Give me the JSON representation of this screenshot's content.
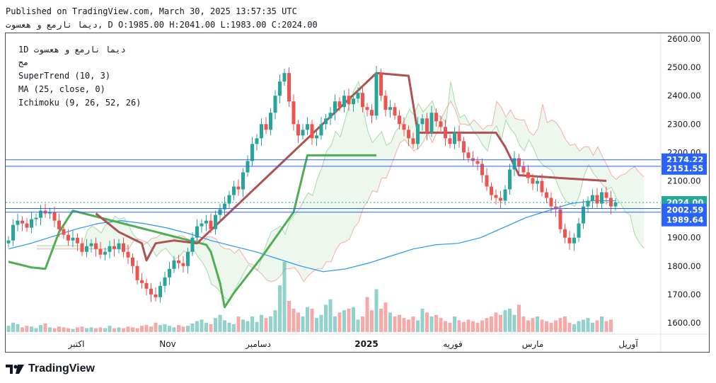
{
  "header": {
    "published": "Published on TradingView.com, March 30, 2025 13:57:35 UTC",
    "ohlc_line": "ديما نارمع و هعسوت, D O:1985.00 H:2041.00 L:1983.00 C:2024.00"
  },
  "legend": {
    "symbol": "1D  ديما نارمع و هعسوت",
    "sub": "مج",
    "supertrend": "SuperTrend (10, 3)",
    "ma": "MA (25, close, 0)",
    "ichimoku": "Ichimoku (9, 26, 52, 26)"
  },
  "brand": {
    "name": "TradingView"
  },
  "colors": {
    "up": "#26a69a",
    "down": "#ef5350",
    "supertrend_up": "#4caf50",
    "supertrend_down": "#b05050",
    "ma": "#2196f3",
    "price_line": "#2962ff"
  },
  "chart_data": {
    "type": "candlestick",
    "title": "ديما نارمع و هعسوت, 1D",
    "ylim": [
      1560,
      2620
    ],
    "y_ticks": [
      "2600.00",
      "2500.00",
      "2400.00",
      "2300.00",
      "2200.00",
      "2100.00",
      "2000.00",
      "1900.00",
      "1800.00",
      "1700.00",
      "1600.00"
    ],
    "x_ticks": [
      "اكتبر",
      "Nov",
      "دسامبر",
      "2025",
      "فوريه",
      "مارس",
      "آوريل"
    ],
    "price_labels": [
      {
        "text": "2174.22",
        "value": 2174.22
      },
      {
        "text": "2151.55",
        "value": 2151.55
      },
      {
        "text": "2024.00",
        "value": 2024.0
      },
      {
        "text": "2002.59",
        "value": 2002.59
      },
      {
        "text": "1989.64",
        "value": 1989.64
      }
    ],
    "last": {
      "open": 1985.0,
      "high": 2041.0,
      "low": 1983.0,
      "close": 2024.0
    },
    "closes": [
      1890,
      1945,
      1960,
      1950,
      1935,
      1965,
      1970,
      1995,
      1985,
      1990,
      1960,
      1930,
      1910,
      1890,
      1900,
      1880,
      1850,
      1870,
      1880,
      1860,
      1840,
      1850,
      1870,
      1860,
      1880,
      1850,
      1830,
      1800,
      1750,
      1740,
      1720,
      1700,
      1690,
      1730,
      1760,
      1790,
      1820,
      1810,
      1800,
      1850,
      1900,
      1940,
      1950,
      1960,
      1930,
      1980,
      2000,
      2020,
      2050,
      2080,
      2070,
      2130,
      2170,
      2230,
      2250,
      2300,
      2280,
      2340,
      2400,
      2450,
      2480,
      2380,
      2300,
      2260,
      2280,
      2300,
      2250,
      2260,
      2300,
      2320,
      2340,
      2380,
      2360,
      2400,
      2370,
      2390,
      2410,
      2360,
      2350,
      2330,
      2480,
      2400,
      2350,
      2360,
      2330,
      2300,
      2280,
      2250,
      2230,
      2300,
      2320,
      2270,
      2340,
      2310,
      2290,
      2250,
      2230,
      2270,
      2240,
      2200,
      2180,
      2170,
      2160,
      2120,
      2080,
      2050,
      2040,
      2030,
      2070,
      2140,
      2180,
      2150,
      2130,
      2110,
      2090,
      2100,
      2060,
      2040,
      2010,
      2000,
      1930,
      1900,
      1880,
      1900,
      1950,
      2010,
      2030,
      2050,
      2020,
      2060,
      2040,
      2010,
      2024
    ],
    "ma": [
      1860,
      1880,
      1905,
      1930,
      1950,
      1960,
      1950,
      1935,
      1915,
      1890,
      1870,
      1850,
      1825,
      1800,
      1780,
      1790,
      1810,
      1835,
      1860,
      1875,
      1880,
      1900,
      1935,
      1970,
      1995,
      2020,
      2030,
      2030
    ],
    "supertrend_up": [
      [
        0,
        1815
      ],
      [
        5,
        1795
      ],
      [
        8,
        1790
      ],
      [
        11,
        1920
      ],
      [
        14,
        1995
      ],
      [
        43,
        1875
      ],
      [
        44,
        1850
      ],
      [
        46,
        1740
      ],
      [
        47,
        1655
      ],
      [
        49,
        1705
      ],
      [
        55,
        1830
      ],
      [
        62,
        1990
      ],
      [
        65,
        2190
      ],
      [
        80,
        2190
      ]
    ],
    "supertrend_down": [
      [
        19,
        1985
      ],
      [
        24,
        1920
      ],
      [
        29,
        1880
      ],
      [
        30,
        1820
      ],
      [
        32,
        1880
      ],
      [
        36,
        1890
      ],
      [
        41,
        1880
      ],
      [
        80,
        2480
      ],
      [
        87,
        2470
      ],
      [
        89,
        2270
      ],
      [
        106,
        2270
      ],
      [
        108,
        2220
      ],
      [
        111,
        2120
      ],
      [
        120,
        2110
      ],
      [
        130,
        2100
      ]
    ],
    "volume": [
      0.08,
      0.12,
      0.1,
      0.06,
      0.08,
      0.07,
      0.05,
      0.09,
      0.11,
      0.06,
      0.05,
      0.07,
      0.06,
      0.05,
      0.04,
      0.06,
      0.07,
      0.05,
      0.06,
      0.05,
      0.06,
      0.05,
      0.08,
      0.05,
      0.06,
      0.05,
      0.07,
      0.06,
      0.05,
      0.08,
      0.09,
      0.07,
      0.12,
      0.09,
      0.1,
      0.08,
      0.06,
      0.09,
      0.07,
      0.08,
      0.11,
      0.14,
      0.16,
      0.12,
      0.1,
      0.18,
      0.22,
      0.15,
      0.12,
      0.1,
      0.2,
      0.16,
      0.14,
      0.2,
      0.13,
      0.22,
      0.18,
      0.2,
      0.28,
      0.6,
      0.9,
      0.4,
      0.3,
      0.25,
      0.2,
      0.32,
      0.3,
      0.18,
      0.22,
      0.35,
      0.42,
      0.2,
      0.25,
      0.28,
      0.3,
      0.32,
      0.16,
      0.2,
      0.45,
      0.28,
      0.55,
      0.3,
      0.38,
      0.25,
      0.2,
      0.22,
      0.18,
      0.16,
      0.2,
      0.15,
      0.3,
      0.25,
      0.2,
      0.22,
      0.18,
      0.14,
      0.12,
      0.2,
      0.15,
      0.13,
      0.16,
      0.14,
      0.12,
      0.15,
      0.18,
      0.2,
      0.25,
      0.22,
      0.28,
      0.3,
      0.22,
      0.35,
      0.2,
      0.15,
      0.18,
      0.2,
      0.16,
      0.14,
      0.12,
      0.15,
      0.18,
      0.2,
      0.12,
      0.1,
      0.14,
      0.16,
      0.18,
      0.12,
      0.15,
      0.2,
      0.14,
      0.16
    ]
  }
}
